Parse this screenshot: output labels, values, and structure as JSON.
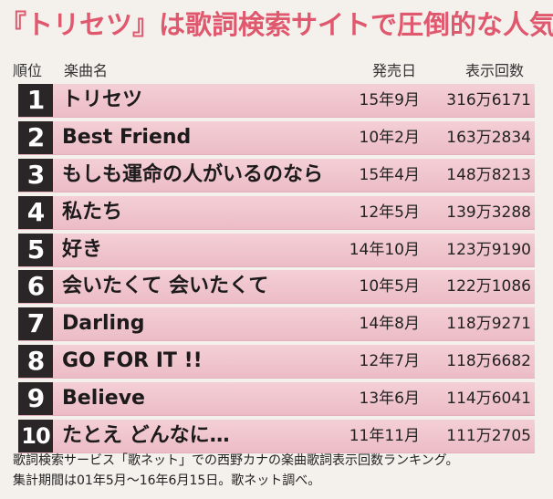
{
  "title": "『トリセツ』は歌詞検索サイトで圧倒的な人気",
  "header": {
    "rank": "順位",
    "song": "楽曲名",
    "date": "発売日",
    "views": "表示回数"
  },
  "rows": [
    {
      "rank": "1",
      "song": "トリセツ",
      "date": "15年9月",
      "views": "316万6171"
    },
    {
      "rank": "2",
      "song": "Best Friend",
      "date": "10年2月",
      "views": "163万2834"
    },
    {
      "rank": "3",
      "song": "もしも運命の人がいるのなら",
      "date": "15年4月",
      "views": "148万8213"
    },
    {
      "rank": "4",
      "song": "私たち",
      "date": "12年5月",
      "views": "139万3288"
    },
    {
      "rank": "5",
      "song": "好き",
      "date": "14年10月",
      "views": "123万9190"
    },
    {
      "rank": "6",
      "song": "会いたくて 会いたくて",
      "date": "10年5月",
      "views": "122万1086"
    },
    {
      "rank": "7",
      "song": "Darling",
      "date": "14年8月",
      "views": "118万9271"
    },
    {
      "rank": "8",
      "song": "GO FOR IT !!",
      "date": "12年7月",
      "views": "118万6682"
    },
    {
      "rank": "9",
      "song": "Believe",
      "date": "13年6月",
      "views": "114万6041"
    },
    {
      "rank": "10",
      "song": "たとえ どんなに…",
      "date": "11年11月",
      "views": "111万2705"
    }
  ],
  "footnote": {
    "line1": "歌詞検索サービス「歌ネット」での西野カナの楽曲歌詞表示回数ランキング。",
    "line2": "集計期間は01年5月〜16年6月15日。歌ネット調べ。"
  },
  "colors": {
    "title": "#e0586e",
    "row_bg": "#f4cfd6",
    "rank_bg": "#2a2628"
  }
}
